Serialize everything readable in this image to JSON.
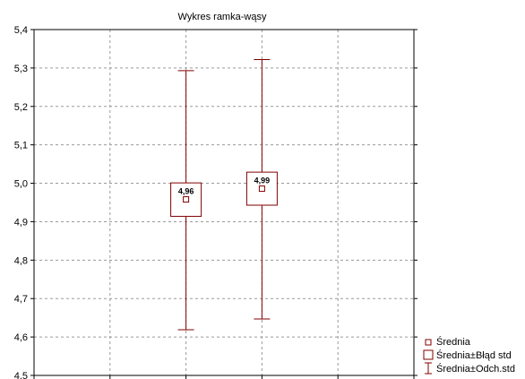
{
  "chart_data": {
    "type": "boxplot",
    "title": "Wykres ramka-wąsy",
    "xlabel": "",
    "ylabel": "",
    "ylim": [
      4.5,
      5.4
    ],
    "yticks": [
      "4,5",
      "4,6",
      "4,7",
      "4,8",
      "4,9",
      "5,0",
      "5,1",
      "5,2",
      "5,3",
      "5,4"
    ],
    "ytick_values": [
      4.5,
      4.6,
      4.7,
      4.8,
      4.9,
      5.0,
      5.1,
      5.2,
      5.3,
      5.4
    ],
    "grid": true,
    "legend_position": "bottom-right",
    "color": "#800000",
    "groups": [
      {
        "label": "4,96",
        "mean": 4.958,
        "box_low": 4.914,
        "box_high": 5.001,
        "whisker_low": 4.619,
        "whisker_high": 5.293
      },
      {
        "label": "4,99",
        "mean": 4.986,
        "box_low": 4.943,
        "box_high": 5.029,
        "whisker_low": 4.647,
        "whisker_high": 5.322
      }
    ],
    "legend": [
      "Średnia",
      "Średnia±Błąd std",
      "Średnia±Odch.std"
    ]
  }
}
